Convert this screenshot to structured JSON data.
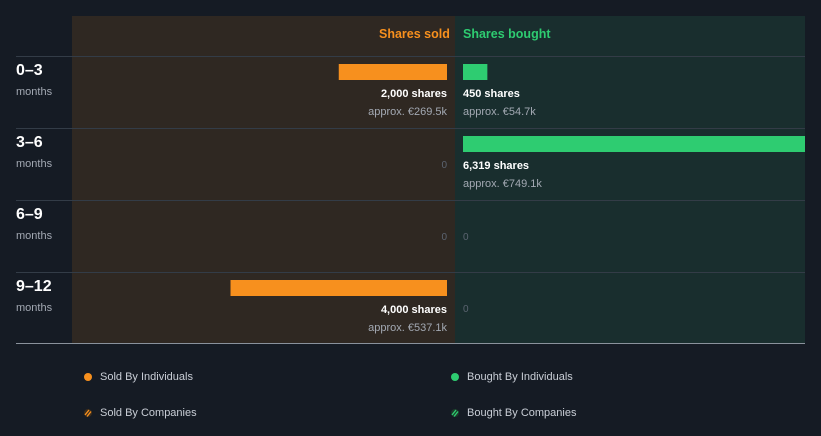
{
  "header": {
    "sold_label": "Shares sold",
    "bought_label": "Shares bought",
    "sold_color": "#f7901e",
    "bought_color": "#2ecc71"
  },
  "chart_data": {
    "type": "bar",
    "orientation": "horizontal-diverging",
    "categories": [
      "0–3",
      "3–6",
      "6–9",
      "9–12"
    ],
    "category_unit": "months",
    "max_shares": 6319,
    "rows": [
      {
        "period": "0–3",
        "unit": "months",
        "sold": 2000,
        "sold_label": "2,000 shares",
        "sold_approx": "approx. €269.5k",
        "bought": 450,
        "bought_label": "450 shares",
        "bought_approx": "approx. €54.7k"
      },
      {
        "period": "3–6",
        "unit": "months",
        "sold": 0,
        "sold_label": "0",
        "sold_approx": "",
        "bought": 6319,
        "bought_label": "6,319 shares",
        "bought_approx": "approx. €749.1k"
      },
      {
        "period": "6–9",
        "unit": "months",
        "sold": 0,
        "sold_label": "0",
        "sold_approx": "",
        "bought": 0,
        "bought_label": "0",
        "bought_approx": ""
      },
      {
        "period": "9–12",
        "unit": "months",
        "sold": 4000,
        "sold_label": "4,000 shares",
        "sold_approx": "approx. €537.1k",
        "bought": 0,
        "bought_label": "0",
        "bought_approx": ""
      }
    ]
  },
  "legend": {
    "sold_individuals": "Sold By Individuals",
    "bought_individuals": "Bought By Individuals",
    "sold_companies": "Sold By Companies",
    "bought_companies": "Bought By Companies"
  }
}
